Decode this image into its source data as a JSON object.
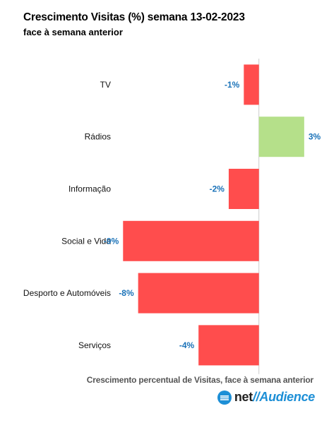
{
  "header": {
    "title": "Crescimento Visitas (%) semana 13-02-2023",
    "subtitle": "face à semana anterior"
  },
  "footer": {
    "caption": "Crescimento percentual de Visitas, face à semana anterior",
    "logo_prefix": "net",
    "logo_slashes": "//",
    "logo_suffix": "Audience"
  },
  "colors": {
    "negative": "#ff4d4d",
    "positive": "#b5e08a",
    "value_label": "#1a72b8",
    "axis": "#cccccc"
  },
  "chart_data": {
    "type": "bar",
    "orientation": "horizontal",
    "title": "Crescimento Visitas (%) semana 13-02-2023",
    "subtitle": "face à semana anterior",
    "xlabel": "Crescimento percentual de Visitas, face à semana anterior",
    "categories": [
      "TV",
      "Rádios",
      "Informação",
      "Social e Vida",
      "Desporto e Automóveis",
      "Serviços"
    ],
    "values": [
      -1,
      3,
      -2,
      -9,
      -8,
      -4
    ],
    "value_labels": [
      "-1%",
      "3%",
      "-2%",
      "-9%",
      "-8%",
      "-4%"
    ],
    "xlim": [
      -9.2,
      3.1
    ],
    "grid": false,
    "legend": "none"
  }
}
